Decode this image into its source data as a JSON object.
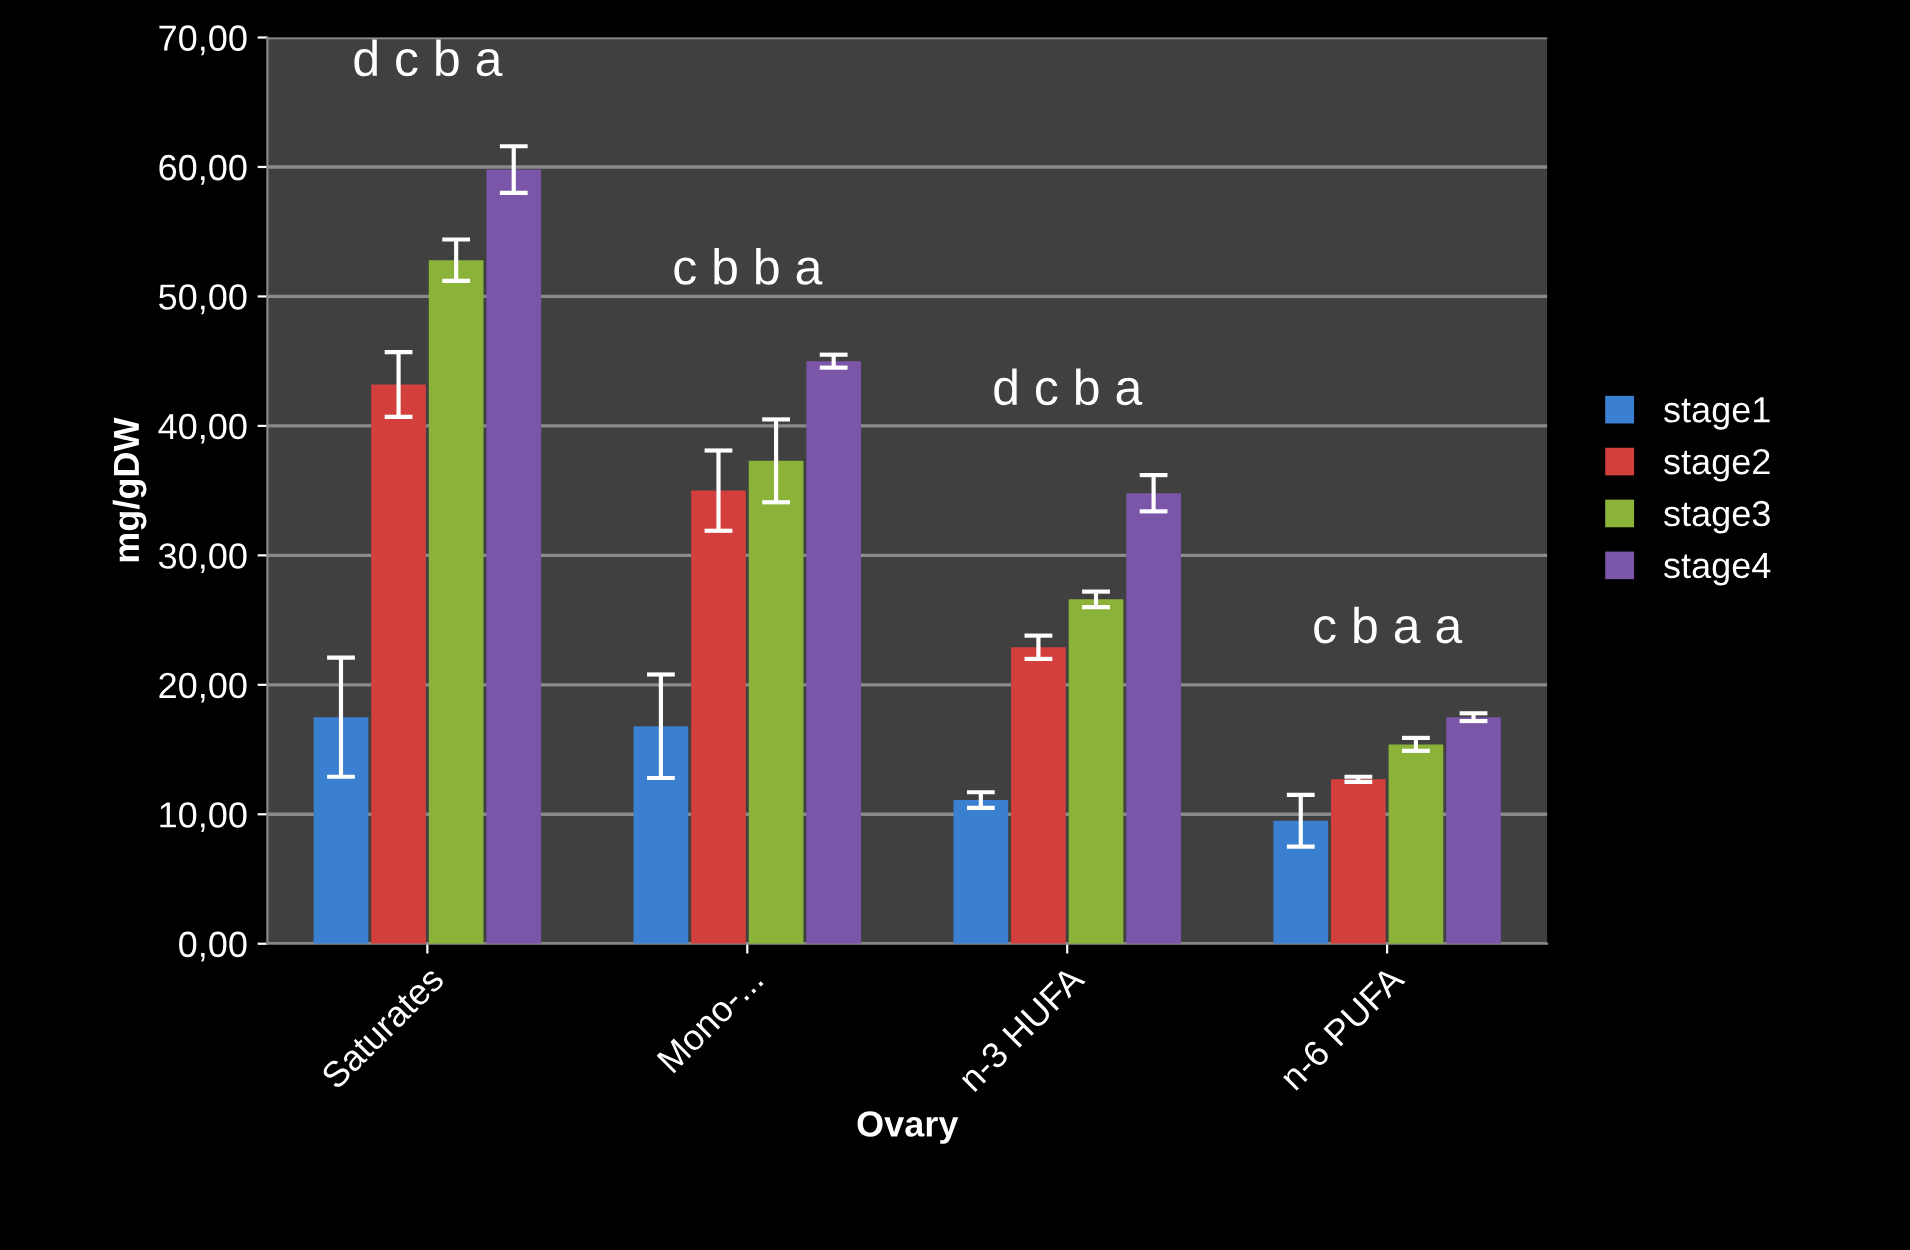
{
  "chart_data": {
    "type": "bar",
    "categories": [
      "Saturates",
      "Mono-...",
      "n-3 HUFA",
      "n-6 PUFA"
    ],
    "xlabel": "Ovary",
    "ylabel": "mg/gDW",
    "series": [
      {
        "name": "stage1",
        "color": "#3a7fd0",
        "values": [
          17.5,
          16.8,
          11.1,
          9.5
        ],
        "errors": [
          4.6,
          4.0,
          0.6,
          2.0
        ]
      },
      {
        "name": "stage2",
        "color": "#d23f3c",
        "values": [
          43.2,
          35.0,
          22.9,
          12.7
        ],
        "errors": [
          2.5,
          3.1,
          0.9,
          0.2
        ]
      },
      {
        "name": "stage3",
        "color": "#8bb33a",
        "values": [
          52.8,
          37.3,
          26.6,
          15.4
        ],
        "errors": [
          1.6,
          3.2,
          0.6,
          0.5
        ]
      },
      {
        "name": "stage4",
        "color": "#7a55a8",
        "values": [
          59.8,
          45.0,
          34.8,
          17.5
        ],
        "errors": [
          1.8,
          0.5,
          1.4,
          0.3
        ]
      }
    ],
    "ylim": [
      0,
      70
    ],
    "yticks": [
      {
        "value": 0,
        "label": "0,00"
      },
      {
        "value": 10,
        "label": "10,00"
      },
      {
        "value": 20,
        "label": "20,00"
      },
      {
        "value": 30,
        "label": "30,00"
      },
      {
        "value": 40,
        "label": "40,00"
      },
      {
        "value": 50,
        "label": "50,00"
      },
      {
        "value": 60,
        "label": "60,00"
      },
      {
        "value": 70,
        "label": "70,00"
      }
    ],
    "grid": "y",
    "legend": "right",
    "annotations": [
      "d c b a",
      "c b b a",
      "d c b a",
      "c b a a"
    ]
  }
}
